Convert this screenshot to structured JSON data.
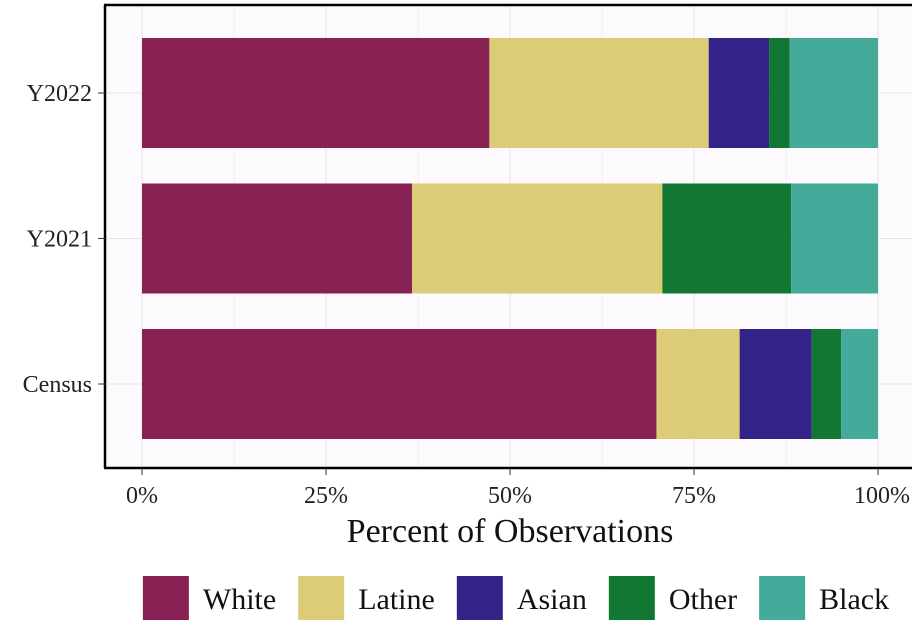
{
  "chart_data": {
    "type": "bar",
    "orientation": "horizontal",
    "stacked": true,
    "normalized": true,
    "categories": [
      "Y2022",
      "Y2021",
      "Census"
    ],
    "series": [
      {
        "name": "White",
        "color": "#882255",
        "values": [
          47.2,
          36.7,
          69.9
        ]
      },
      {
        "name": "Latine",
        "color": "#DDCC77",
        "values": [
          29.8,
          34.0,
          11.3
        ]
      },
      {
        "name": "Asian",
        "color": "#332288",
        "values": [
          8.2,
          0.0,
          9.8
        ]
      },
      {
        "name": "Other",
        "color": "#117733",
        "values": [
          2.8,
          17.5,
          4.0
        ]
      },
      {
        "name": "Black",
        "color": "#44AA99",
        "values": [
          12.0,
          11.8,
          5.0
        ]
      }
    ],
    "xlabel": "Percent of Observations",
    "ylabel": "",
    "xlim": [
      0,
      100
    ],
    "xticks": [
      0,
      25,
      50,
      75,
      100
    ],
    "xtick_labels": [
      "0%",
      "25%",
      "50%",
      "75%",
      "100%"
    ],
    "grid": true,
    "legend_position": "bottom",
    "panel_background": "#FCFAFC",
    "grid_color": "#E6E4E6"
  }
}
